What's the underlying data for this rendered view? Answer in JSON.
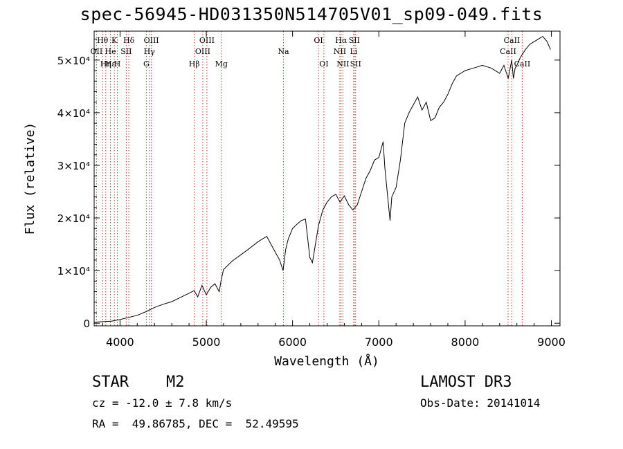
{
  "title": "spec-56945-HD031350N514705V01_sp09-049.fits",
  "info": {
    "object_class": "STAR",
    "subclass": "M2",
    "survey": "LAMOST DR3",
    "cz": "cz = -12.0 ± 7.8 km/s",
    "obs_date": "Obs-Date: 20141014",
    "coords": "RA =  49.86785, DEC =  52.49595"
  },
  "chart_data": {
    "type": "line",
    "title": "spec-56945-HD031350N514705V01_sp09-049.fits",
    "xlabel": "Wavelength (Å)",
    "ylabel": "Flux (relative)",
    "xlim": [
      3700,
      9100
    ],
    "ylim": [
      -500,
      55500
    ],
    "x_ticks": [
      4000,
      5000,
      6000,
      7000,
      8000,
      9000
    ],
    "y_ticks": [
      {
        "value": 0,
        "label": "0"
      },
      {
        "value": 10000,
        "label": "1×10⁴"
      },
      {
        "value": 20000,
        "label": "2×10⁴"
      },
      {
        "value": 30000,
        "label": "3×10⁴"
      },
      {
        "value": 40000,
        "label": "4×10⁴"
      },
      {
        "value": 50000,
        "label": "5×10⁴"
      }
    ],
    "series": [
      {
        "name": "flux",
        "x": [
          3700,
          3800,
          3900,
          4000,
          4100,
          4200,
          4300,
          4400,
          4500,
          4600,
          4700,
          4800,
          4860,
          4900,
          4950,
          5000,
          5050,
          5100,
          5150,
          5170,
          5200,
          5250,
          5300,
          5400,
          5500,
          5600,
          5700,
          5800,
          5850,
          5890,
          5920,
          5950,
          6000,
          6050,
          6100,
          6150,
          6200,
          6230,
          6250,
          6300,
          6350,
          6400,
          6450,
          6500,
          6550,
          6600,
          6650,
          6700,
          6750,
          6800,
          6850,
          6900,
          6950,
          7000,
          7050,
          7070,
          7100,
          7130,
          7150,
          7200,
          7250,
          7300,
          7350,
          7400,
          7450,
          7500,
          7550,
          7600,
          7650,
          7700,
          7750,
          7800,
          7850,
          7900,
          8000,
          8100,
          8200,
          8300,
          8400,
          8450,
          8500,
          8540,
          8560,
          8580,
          8600,
          8640,
          8660,
          8700,
          8750,
          8800,
          8850,
          8900,
          8950,
          8990
        ],
        "y": [
          200,
          300,
          400,
          700,
          1100,
          1500,
          2200,
          3000,
          3600,
          4100,
          4900,
          5700,
          6200,
          5000,
          7200,
          5400,
          6800,
          7500,
          6000,
          8000,
          10200,
          11000,
          11800,
          13000,
          14200,
          15500,
          16500,
          13500,
          12000,
          10000,
          14000,
          16000,
          18000,
          18800,
          19500,
          19800,
          12500,
          11500,
          13500,
          18500,
          21500,
          23000,
          24000,
          24500,
          23000,
          24200,
          22500,
          21500,
          22500,
          25000,
          27500,
          29000,
          31000,
          31500,
          34500,
          29500,
          24500,
          19500,
          24000,
          25800,
          31000,
          38000,
          40000,
          41500,
          43000,
          40500,
          42000,
          38500,
          39000,
          41000,
          42000,
          43500,
          45500,
          47000,
          48000,
          48500,
          49000,
          48500,
          47500,
          49000,
          46500,
          50000,
          46500,
          48500,
          49000,
          50500,
          51000,
          52000,
          53000,
          53500,
          54000,
          54500,
          53500,
          52000
        ]
      }
    ],
    "lines": [
      {
        "label": "Hθ",
        "wavelength": 3798,
        "row": 0
      },
      {
        "label": "OII",
        "wavelength": 3727,
        "row": 1
      },
      {
        "label": "Hε",
        "wavelength": 3889,
        "row": 2
      },
      {
        "label": "He",
        "wavelength": 3889,
        "row": 1
      },
      {
        "label": "K",
        "wavelength": 3934,
        "row": 0
      },
      {
        "label": "Hη",
        "wavelength": 3835,
        "row": 2
      },
      {
        "label": "H",
        "wavelength": 3969,
        "row": 2
      },
      {
        "label": "SII",
        "wavelength": 4072,
        "row": 1
      },
      {
        "label": "Hδ",
        "wavelength": 4102,
        "row": 0
      },
      {
        "label": "OIII",
        "wavelength": 4363,
        "row": 0
      },
      {
        "label": "Hγ",
        "wavelength": 4340,
        "row": 1
      },
      {
        "label": "G",
        "wavelength": 4305,
        "row": 2
      },
      {
        "label": "Hβ",
        "wavelength": 4861,
        "row": 2
      },
      {
        "label": "OIII",
        "wavelength": 5007,
        "row": 0
      },
      {
        "label": "OIII",
        "wavelength": 4959,
        "row": 1
      },
      {
        "label": "Mg",
        "wavelength": 5175,
        "row": 2
      },
      {
        "label": "Na",
        "wavelength": 5894,
        "row": 1
      },
      {
        "label": "OI",
        "wavelength": 6300,
        "row": 0
      },
      {
        "label": "OI",
        "wavelength": 6363,
        "row": 2
      },
      {
        "label": "Hα",
        "wavelength": 6563,
        "row": 0
      },
      {
        "label": "SII",
        "wavelength": 6716,
        "row": 0
      },
      {
        "label": "NII",
        "wavelength": 6548,
        "row": 1
      },
      {
        "label": "Li",
        "wavelength": 6708,
        "row": 1
      },
      {
        "label": "NII",
        "wavelength": 6584,
        "row": 2
      },
      {
        "label": "SII",
        "wavelength": 6731,
        "row": 2
      },
      {
        "label": "CaII",
        "wavelength": 8542,
        "row": 0
      },
      {
        "label": "CaII",
        "wavelength": 8498,
        "row": 1
      },
      {
        "label": "CaII",
        "wavelength": 8662,
        "row": 2
      }
    ]
  }
}
